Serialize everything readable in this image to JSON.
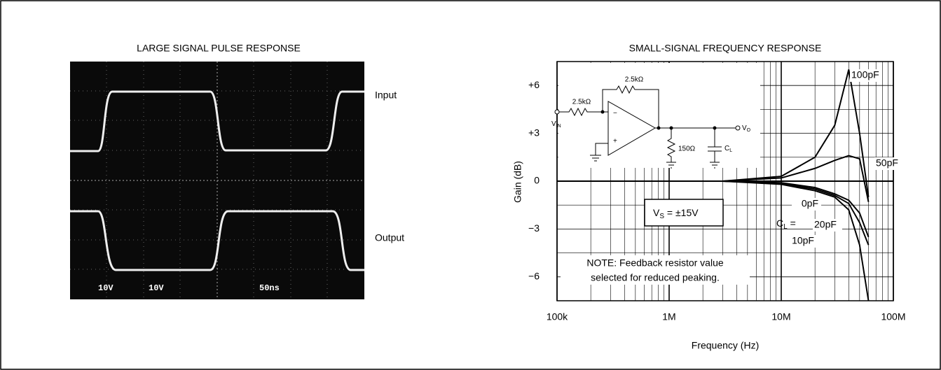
{
  "pulse": {
    "title": "LARGE SIGNAL PULSE RESPONSE",
    "input_label": "Input",
    "output_label": "Output",
    "scale_labels": [
      "10V",
      "10V",
      "50ns"
    ]
  },
  "chart_data": {
    "type": "line",
    "title": "SMALL-SIGNAL FREQUENCY RESPONSE",
    "x_label": "Frequency (Hz)",
    "y_label": "Gain (dB)",
    "log_x": true,
    "grid": true,
    "xlim": [
      100000,
      100000000
    ],
    "ylim": [
      -7.5,
      7.5
    ],
    "xticks": [
      {
        "value": 100000,
        "label": "100k"
      },
      {
        "value": 1000000,
        "label": "1M"
      },
      {
        "value": 10000000,
        "label": "10M"
      },
      {
        "value": 100000000,
        "label": "100M"
      }
    ],
    "yticks": [
      {
        "value": 6,
        "label": "+6"
      },
      {
        "value": 3,
        "label": "+3"
      },
      0,
      {
        "value": -3,
        "label": "−3"
      },
      {
        "value": -6,
        "label": "−6"
      }
    ],
    "x": [
      100000,
      1000000,
      3000000,
      10000000,
      20000000,
      30000000,
      40000000,
      50000000,
      60000000
    ],
    "series": [
      {
        "name": "100pF",
        "color": "#000000",
        "values": [
          0,
          0,
          0,
          0.3,
          1.5,
          3.5,
          7,
          3,
          -1
        ]
      },
      {
        "name": "50pF",
        "color": "#000000",
        "values": [
          0,
          0,
          0,
          0.2,
          0.8,
          1.3,
          1.6,
          1.4,
          -1.3
        ]
      },
      {
        "name": "0pF",
        "color": "#000000",
        "values": [
          0,
          0,
          0,
          -0.1,
          -0.4,
          -0.8,
          -1.2,
          -2,
          -3.5
        ]
      },
      {
        "name": "20pF",
        "color": "#000000",
        "values": [
          0,
          0,
          0,
          -0.15,
          -0.5,
          -0.9,
          -1.4,
          -2.6,
          -4
        ]
      },
      {
        "name": "10pF",
        "color": "#000000",
        "values": [
          0,
          0,
          0,
          -0.2,
          -0.6,
          -1.0,
          -1.8,
          -4,
          -7.5
        ]
      }
    ],
    "cl_label": [
      "C",
      "L",
      " ="
    ],
    "supply_label": [
      "V",
      "S",
      " = ±15V"
    ],
    "note": [
      "NOTE: Feedback resistor value",
      "selected for reduced peaking."
    ],
    "inset": {
      "r_in": "2.5kΩ",
      "r_f": "2.5kΩ",
      "r_load": "150Ω",
      "c_load": [
        "C",
        "L"
      ],
      "v_in": [
        "V",
        "IN"
      ],
      "v_out": [
        "V",
        "O"
      ],
      "minus": "−",
      "plus": "+"
    }
  }
}
